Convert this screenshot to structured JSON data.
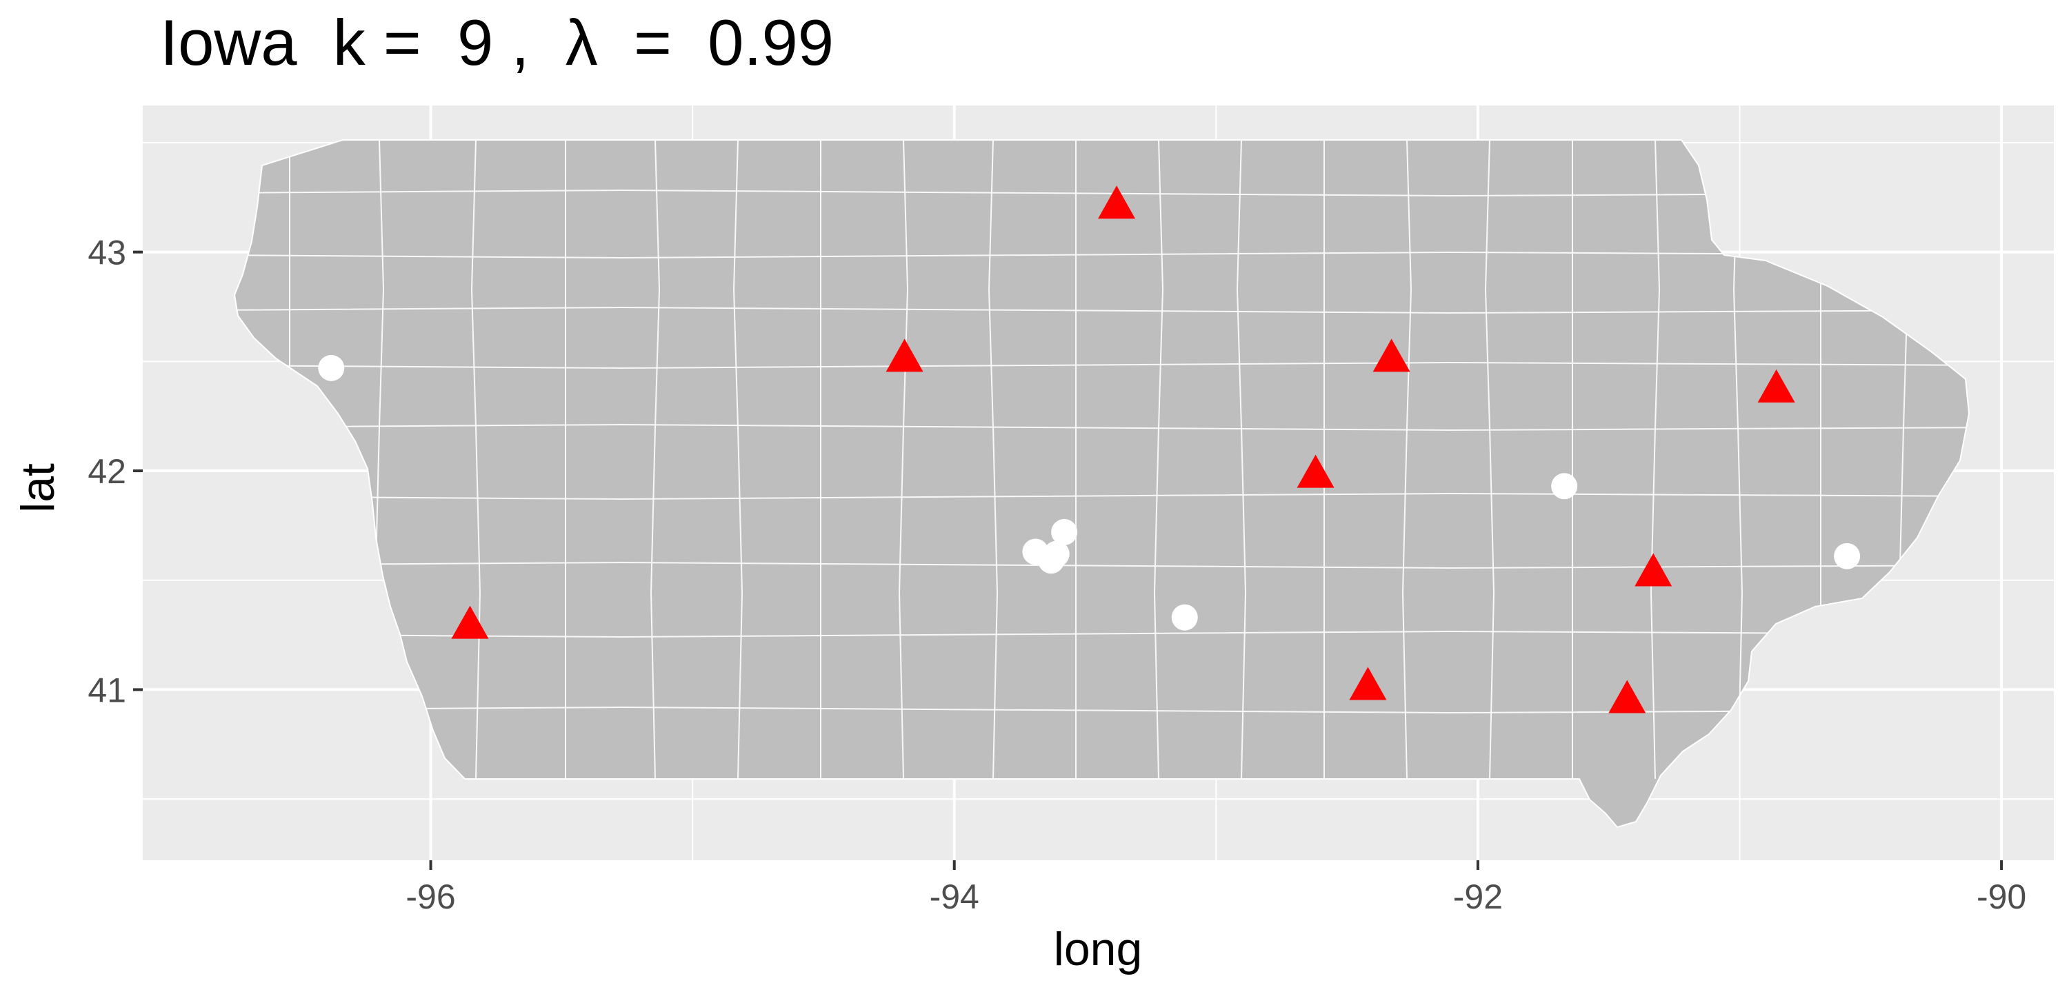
{
  "title": "Iowa  k =  9 ,  λ  =  0.99",
  "chart_data": {
    "type": "scatter",
    "title": "Iowa  k =  9 ,  λ  =  0.99",
    "xlabel": "long",
    "ylabel": "lat",
    "xlim": [
      -97.1,
      -89.8
    ],
    "ylim": [
      40.22,
      43.67
    ],
    "x_ticks": [
      -96,
      -94,
      -92,
      -90
    ],
    "x_tick_labels": [
      "-96",
      "-94",
      "-92",
      "-90"
    ],
    "y_ticks": [
      41,
      42,
      43
    ],
    "y_tick_labels": [
      "41",
      "42",
      "43"
    ],
    "grid": true,
    "legend": "none",
    "background": "#ebebeb",
    "region_fill": "#bebebe",
    "series": [
      {
        "marker": "triangle",
        "color": "#ff0000",
        "points": [
          {
            "x": -93.38,
            "y": 43.21
          },
          {
            "x": -94.19,
            "y": 42.51
          },
          {
            "x": -92.33,
            "y": 42.51
          },
          {
            "x": -90.86,
            "y": 42.37
          },
          {
            "x": -92.62,
            "y": 41.98
          },
          {
            "x": -91.33,
            "y": 41.53
          },
          {
            "x": -95.85,
            "y": 41.29
          },
          {
            "x": -92.42,
            "y": 41.01
          },
          {
            "x": -91.43,
            "y": 40.95
          }
        ]
      },
      {
        "marker": "circle",
        "color": "#ffffff",
        "points": [
          {
            "x": -96.38,
            "y": 42.47
          },
          {
            "x": -91.67,
            "y": 41.93
          },
          {
            "x": -93.58,
            "y": 41.72
          },
          {
            "x": -93.69,
            "y": 41.63
          },
          {
            "x": -93.63,
            "y": 41.59
          },
          {
            "x": -93.61,
            "y": 41.62
          },
          {
            "x": -90.59,
            "y": 41.61
          },
          {
            "x": -93.12,
            "y": 41.33
          }
        ]
      }
    ]
  }
}
